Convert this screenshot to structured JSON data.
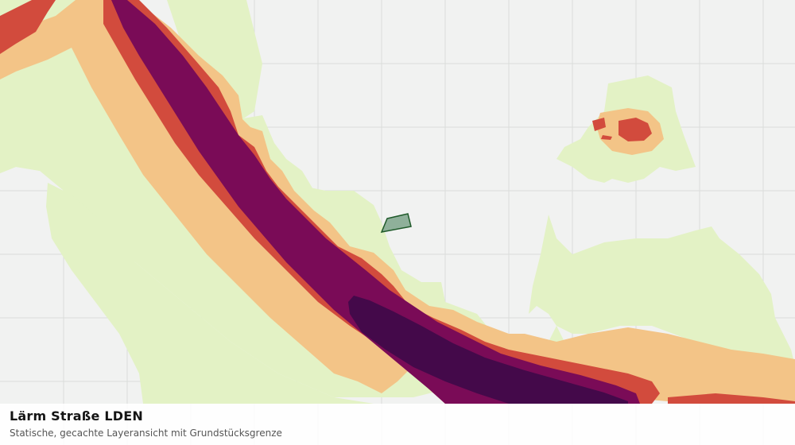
{
  "map": {
    "layer_name": "Lärm Straße LDEN",
    "colors": {
      "background": "#f1f2f1",
      "grid": "#dadcda",
      "noise_low": "#e3f2c5",
      "noise_mid_low": "#f3c487",
      "noise_mid": "#d24b3d",
      "noise_high": "#7a0b57",
      "noise_very_high": "#44094a",
      "parcel_fill": "#8fb09a",
      "parcel_stroke": "#1f5a2a"
    },
    "parcel_icon": "property-boundary-polygon"
  },
  "caption": {
    "title": "Lärm Straße LDEN",
    "subtitle": "Statische, gecachte Layeransicht mit Grundstücksgrenze"
  }
}
